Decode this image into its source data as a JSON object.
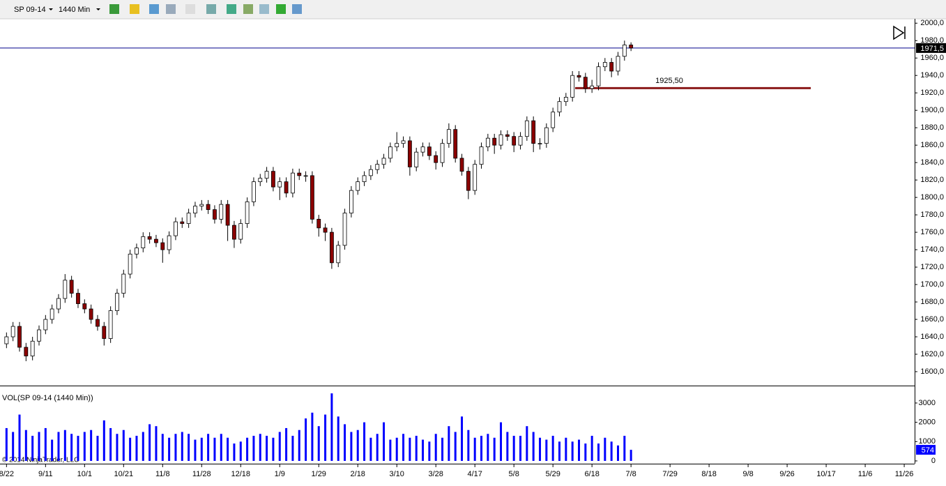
{
  "toolbar": {
    "instrument": "SP 09-14",
    "interval": "1440 Min"
  },
  "copyright": "© 2014 NinjaTrader, LLC",
  "chart_data": [
    {
      "type": "candlestick",
      "open": [
        1632,
        1640,
        1652,
        1628,
        1618,
        1635,
        1648,
        1660,
        1672,
        1684,
        1705,
        1690,
        1678,
        1672,
        1660,
        1652,
        1638,
        1670,
        1690,
        1712,
        1735,
        1742,
        1755,
        1752,
        1748,
        1740,
        1756,
        1772,
        1770,
        1782,
        1790,
        1792,
        1786,
        1775,
        1792,
        1768,
        1752,
        1770,
        1795,
        1818,
        1822,
        1830,
        1812,
        1818,
        1805,
        1828,
        1825,
        1825,
        1775,
        1765,
        1760,
        1725,
        1745,
        1782,
        1808,
        1818,
        1825,
        1832,
        1838,
        1845,
        1858,
        1862,
        1865,
        1835,
        1852,
        1858,
        1848,
        1840,
        1862,
        1878,
        1845,
        1830,
        1808,
        1838,
        1858,
        1868,
        1860,
        1872,
        1870,
        1860,
        1870,
        1888,
        1862,
        1862,
        1880,
        1898,
        1910,
        1915,
        1940,
        1938,
        1925,
        1928,
        1950,
        1955,
        1945,
        1962,
        1975
      ],
      "high": [
        1645,
        1657,
        1657,
        1633,
        1640,
        1653,
        1665,
        1677,
        1689,
        1712,
        1710,
        1695,
        1683,
        1677,
        1665,
        1657,
        1675,
        1695,
        1717,
        1740,
        1747,
        1760,
        1760,
        1757,
        1753,
        1761,
        1777,
        1777,
        1787,
        1795,
        1797,
        1797,
        1791,
        1797,
        1797,
        1773,
        1775,
        1800,
        1823,
        1827,
        1835,
        1835,
        1823,
        1823,
        1833,
        1833,
        1830,
        1830,
        1780,
        1770,
        1765,
        1750,
        1787,
        1813,
        1823,
        1830,
        1837,
        1843,
        1850,
        1863,
        1875,
        1870,
        1870,
        1857,
        1863,
        1863,
        1853,
        1867,
        1885,
        1883,
        1850,
        1835,
        1843,
        1863,
        1873,
        1873,
        1877,
        1877,
        1875,
        1875,
        1893,
        1893,
        1868,
        1885,
        1903,
        1915,
        1920,
        1945,
        1945,
        1943,
        1935,
        1955,
        1960,
        1960,
        1967,
        1980,
        1978
      ],
      "low": [
        1627,
        1635,
        1623,
        1612,
        1613,
        1630,
        1643,
        1655,
        1667,
        1679,
        1685,
        1673,
        1667,
        1655,
        1647,
        1630,
        1633,
        1665,
        1685,
        1707,
        1730,
        1737,
        1747,
        1743,
        1725,
        1735,
        1751,
        1765,
        1765,
        1777,
        1785,
        1781,
        1770,
        1770,
        1750,
        1742,
        1747,
        1765,
        1790,
        1813,
        1817,
        1807,
        1797,
        1800,
        1800,
        1820,
        1818,
        1770,
        1755,
        1750,
        1718,
        1720,
        1740,
        1777,
        1803,
        1813,
        1820,
        1827,
        1833,
        1840,
        1853,
        1857,
        1825,
        1830,
        1847,
        1843,
        1832,
        1835,
        1857,
        1840,
        1825,
        1798,
        1803,
        1833,
        1853,
        1850,
        1855,
        1865,
        1852,
        1855,
        1865,
        1852,
        1855,
        1857,
        1875,
        1893,
        1905,
        1910,
        1933,
        1920,
        1920,
        1923,
        1945,
        1938,
        1940,
        1957,
        1968
      ],
      "close": [
        1640,
        1652,
        1628,
        1618,
        1635,
        1648,
        1660,
        1672,
        1684,
        1705,
        1690,
        1678,
        1672,
        1660,
        1652,
        1638,
        1670,
        1690,
        1712,
        1735,
        1742,
        1755,
        1752,
        1748,
        1740,
        1756,
        1772,
        1770,
        1782,
        1790,
        1792,
        1786,
        1775,
        1792,
        1768,
        1752,
        1770,
        1795,
        1818,
        1822,
        1830,
        1812,
        1818,
        1805,
        1828,
        1825,
        1825,
        1775,
        1765,
        1760,
        1725,
        1745,
        1782,
        1808,
        1818,
        1825,
        1832,
        1838,
        1845,
        1858,
        1862,
        1865,
        1835,
        1852,
        1858,
        1848,
        1840,
        1862,
        1878,
        1845,
        1830,
        1808,
        1838,
        1858,
        1868,
        1860,
        1872,
        1870,
        1860,
        1870,
        1888,
        1862,
        1862,
        1880,
        1898,
        1910,
        1915,
        1940,
        1938,
        1925,
        1928,
        1950,
        1955,
        1945,
        1962,
        1975,
        1971.5
      ],
      "up_color": "#ffffff",
      "down_color": "#8b0000",
      "xlim": [
        -1,
        139.6
      ],
      "ylim": [
        1584,
        2005
      ],
      "yticks": [
        {
          "value": 1600,
          "label": "1600,0"
        },
        {
          "value": 1620,
          "label": "1620,0"
        },
        {
          "value": 1640,
          "label": "1640,0"
        },
        {
          "value": 1660,
          "label": "1660,0"
        },
        {
          "value": 1680,
          "label": "1680,0"
        },
        {
          "value": 1700,
          "label": "1700,0"
        },
        {
          "value": 1720,
          "label": "1720,0"
        },
        {
          "value": 1740,
          "label": "1740,0"
        },
        {
          "value": 1760,
          "label": "1760,0"
        },
        {
          "value": 1780,
          "label": "1780,0"
        },
        {
          "value": 1800,
          "label": "1800,0"
        },
        {
          "value": 1820,
          "label": "1820,0"
        },
        {
          "value": 1840,
          "label": "1840,0"
        },
        {
          "value": 1860,
          "label": "1860,0"
        },
        {
          "value": 1880,
          "label": "1880,0"
        },
        {
          "value": 1900,
          "label": "1900,0"
        },
        {
          "value": 1920,
          "label": "1920,0"
        },
        {
          "value": 1940,
          "label": "1940,0"
        },
        {
          "value": 1960,
          "label": "1960,0"
        },
        {
          "value": 1980,
          "label": "1980,0"
        },
        {
          "value": 2000,
          "label": "2000,0"
        }
      ],
      "last_price": {
        "value": 1971.5,
        "label": "1971,5"
      },
      "level": {
        "value": 1925.5,
        "label": "1925,50"
      }
    },
    {
      "type": "bar",
      "title": "VOL(SP 09-14 (1440 Min))",
      "values": [
        1700,
        1500,
        2400,
        1600,
        1300,
        1500,
        1700,
        1100,
        1500,
        1600,
        1400,
        1300,
        1500,
        1600,
        1300,
        2100,
        1700,
        1400,
        1600,
        1200,
        1300,
        1500,
        1900,
        1800,
        1400,
        1200,
        1400,
        1500,
        1400,
        1100,
        1200,
        1400,
        1200,
        1400,
        1200,
        900,
        1000,
        1200,
        1300,
        1400,
        1300,
        1200,
        1500,
        1700,
        1300,
        1600,
        2200,
        2500,
        1800,
        2400,
        3500,
        2300,
        1900,
        1500,
        1600,
        2000,
        1200,
        1400,
        2000,
        1100,
        1200,
        1400,
        1200,
        1300,
        1100,
        1000,
        1400,
        1200,
        1800,
        1500,
        2300,
        1600,
        1200,
        1300,
        1400,
        1200,
        2000,
        1500,
        1300,
        1300,
        1800,
        1500,
        1200,
        1100,
        1300,
        1000,
        1200,
        1000,
        1100,
        900,
        1300,
        900,
        1200,
        1000,
        800,
        1300,
        574
      ],
      "color": "#0000ff",
      "xlim": [
        -1,
        139.6
      ],
      "ylim": [
        -145,
        3830
      ],
      "yticks": [
        0,
        1000,
        2000,
        3000
      ],
      "xticks": [
        {
          "value": 0,
          "label": "8/22"
        },
        {
          "value": 6,
          "label": "9/11"
        },
        {
          "value": 12,
          "label": "10/1"
        },
        {
          "value": 18,
          "label": "10/21"
        },
        {
          "value": 24,
          "label": "11/8"
        },
        {
          "value": 30,
          "label": "11/28"
        },
        {
          "value": 36,
          "label": "12/18"
        },
        {
          "value": 42,
          "label": "1/9"
        },
        {
          "value": 48,
          "label": "1/29"
        },
        {
          "value": 54,
          "label": "2/18"
        },
        {
          "value": 60,
          "label": "3/10"
        },
        {
          "value": 66,
          "label": "3/28"
        },
        {
          "value": 72,
          "label": "4/17"
        },
        {
          "value": 78,
          "label": "5/8"
        },
        {
          "value": 84,
          "label": "5/29"
        },
        {
          "value": 90,
          "label": "6/18"
        },
        {
          "value": 96,
          "label": "7/8"
        },
        {
          "value": 102,
          "label": "7/29"
        },
        {
          "value": 108,
          "label": "8/18"
        },
        {
          "value": 114,
          "label": "9/8"
        },
        {
          "value": 120,
          "label": "9/26"
        },
        {
          "value": 126,
          "label": "10/17"
        },
        {
          "value": 132,
          "label": "11/6"
        },
        {
          "value": 138,
          "label": "11/26"
        }
      ]
    }
  ]
}
